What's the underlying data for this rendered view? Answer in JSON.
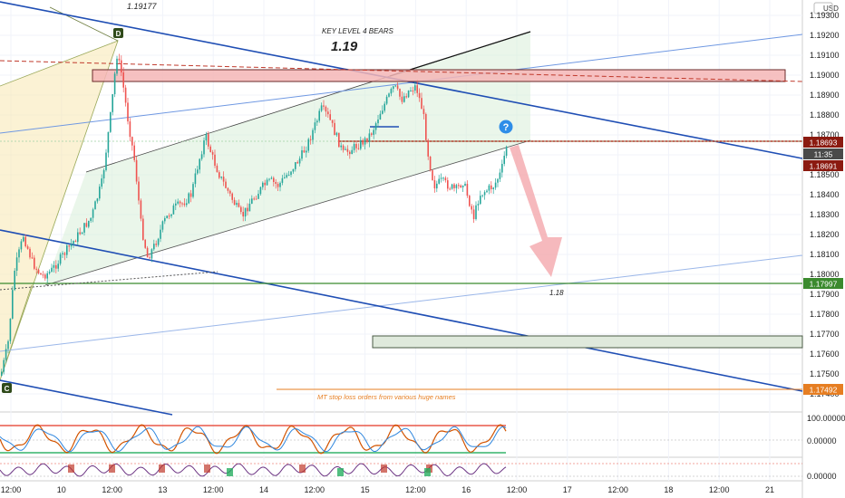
{
  "chart_data": {
    "type": "candlestick",
    "price_scale_label": "USD",
    "y_ticks": [
      "1.19300",
      "1.19200",
      "1.19100",
      "1.19000",
      "1.18900",
      "1.18800",
      "1.18700",
      "1.18600",
      "1.18500",
      "1.18400",
      "1.18300",
      "1.18200",
      "1.18100",
      "1.18000",
      "1.17900",
      "1.17800",
      "1.17700",
      "1.17600",
      "1.17500",
      "1.17400"
    ],
    "x_ticks": [
      "12:00",
      "10",
      "12:00",
      "13",
      "12:00",
      "14",
      "12:00",
      "15",
      "12:00",
      "16",
      "12:00",
      "17",
      "12:00",
      "18",
      "12:00",
      "21"
    ],
    "price_labels": [
      {
        "value": "1.18693",
        "color": "#8b1a10"
      },
      {
        "value": "11:35",
        "color": "#4a4a4a"
      },
      {
        "value": "1.18691",
        "color": "#8b1a10"
      },
      {
        "value": "1.17997",
        "color": "#3b8a2e"
      },
      {
        "value": "1.17492",
        "color": "#e67e22"
      }
    ],
    "annotations": {
      "high": "1.19177",
      "title_small": "KEY LEVEL 4 BEARS",
      "title_big": "1.19",
      "target": "1.18",
      "stops_note": "MT stop loss orders from various huge names",
      "pattern_point_top": "D",
      "pattern_point_bottom": "C",
      "question_mark": "?"
    },
    "osc_ticks": [
      "100.00000",
      "0.00000",
      "0.00000"
    ],
    "colors": {
      "up": "#26a69a",
      "down": "#ef5350",
      "trendline_blue": "#1f4eb4",
      "resistance_zone": "#f4b6b6",
      "support_zone": "#dfe9dc",
      "green_level": "#3b8a2e",
      "orange_level": "#e67e22",
      "red_level": "#b23a2a"
    }
  }
}
